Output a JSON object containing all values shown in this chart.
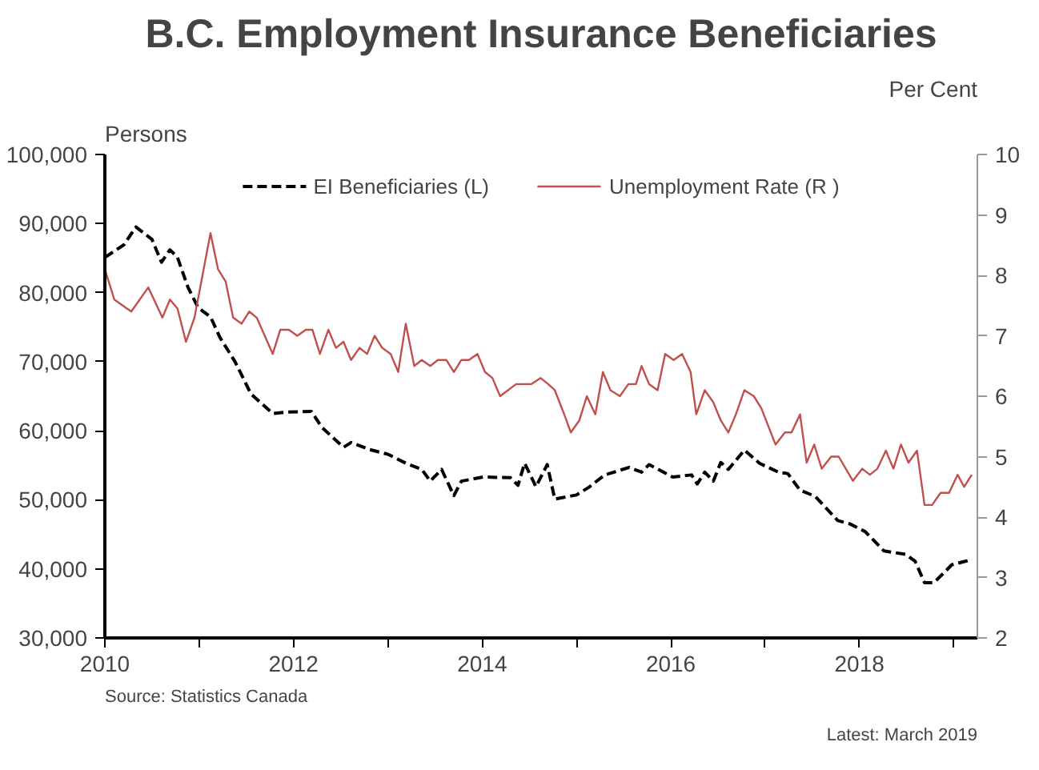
{
  "chart_data": {
    "type": "line",
    "title": "B.C. Employment Insurance Beneficiaries",
    "ylabel": "Persons",
    "y2label": "Per Cent",
    "legend": "top",
    "grid": false,
    "marker": "none",
    "xlim": [
      2010,
      2019.25
    ],
    "xticks": [
      2010,
      {
        "value": 2011,
        "label": null
      },
      2012,
      {
        "value": 2013,
        "label": null
      },
      2014,
      {
        "value": 2015,
        "label": null
      },
      2016,
      {
        "value": 2017,
        "label": null
      },
      2018,
      {
        "value": 2019,
        "label": null
      }
    ],
    "ylim": [
      30000,
      100000
    ],
    "yticks": [
      {
        "value": 30000,
        "label": "30,000"
      },
      {
        "value": 40000,
        "label": "40,000"
      },
      {
        "value": 50000,
        "label": "50,000"
      },
      {
        "value": 60000,
        "label": "60,000"
      },
      {
        "value": 70000,
        "label": "70,000"
      },
      {
        "value": 80000,
        "label": "80,000"
      },
      {
        "value": 90000,
        "label": "90,000"
      },
      {
        "value": 100000,
        "label": "100,000"
      }
    ],
    "y2lim": [
      2,
      10
    ],
    "y2ticks": [
      2,
      3,
      4,
      5,
      6,
      7,
      8,
      9,
      10
    ],
    "series": [
      {
        "name": "EI Beneficiaries (L)",
        "color": "#000000",
        "line_style": "dashed",
        "x": [
          2010.0,
          2010.2,
          2010.33,
          2010.5,
          2010.6,
          2010.69,
          2010.77,
          2010.88,
          2010.99,
          2011.12,
          2011.22,
          2011.38,
          2011.55,
          2011.78,
          2011.94,
          2012.19,
          2012.3,
          2012.53,
          2012.61,
          2012.8,
          2013.0,
          2013.19,
          2013.36,
          2013.45,
          2013.57,
          2013.7,
          2013.78,
          2014.01,
          2014.3,
          2014.38,
          2014.45,
          2014.57,
          2014.69,
          2014.77,
          2015.0,
          2015.13,
          2015.3,
          2015.56,
          2015.69,
          2015.77,
          2016.02,
          2016.22,
          2016.28,
          2016.36,
          2016.45,
          2016.53,
          2016.61,
          2016.78,
          2016.94,
          2017.14,
          2017.24,
          2017.37,
          2017.53,
          2017.77,
          2017.9,
          2018.06,
          2018.26,
          2018.49,
          2018.59,
          2018.69,
          2018.79,
          2018.98,
          2019.15
        ],
        "values": [
          85100,
          86900,
          89500,
          87700,
          84400,
          86200,
          85100,
          80800,
          77800,
          76500,
          73500,
          70000,
          65300,
          62500,
          62700,
          62800,
          60500,
          57600,
          58300,
          57300,
          56600,
          55300,
          54400,
          52700,
          54400,
          50600,
          52700,
          53300,
          53200,
          52100,
          55300,
          51900,
          55100,
          50100,
          50700,
          51800,
          53600,
          54700,
          54000,
          55100,
          53300,
          53600,
          52300,
          54000,
          52700,
          55400,
          54400,
          57200,
          55300,
          54000,
          53800,
          51400,
          50500,
          47000,
          46500,
          45400,
          42600,
          42100,
          41100,
          38000,
          38000,
          40600,
          41200
        ]
      },
      {
        "name": "Unemployment Rate (R )",
        "color": "#c0504d",
        "line_style": "solid",
        "axis": "y2",
        "x": [
          2010.0,
          2010.1,
          2010.28,
          2010.46,
          2010.61,
          2010.69,
          2010.77,
          2010.86,
          2010.95,
          2011.12,
          2011.2,
          2011.28,
          2011.36,
          2011.45,
          2011.53,
          2011.61,
          2011.78,
          2011.86,
          2011.95,
          2012.04,
          2012.13,
          2012.2,
          2012.28,
          2012.37,
          2012.45,
          2012.53,
          2012.61,
          2012.7,
          2012.78,
          2012.86,
          2012.94,
          2013.03,
          2013.11,
          2013.19,
          2013.28,
          2013.36,
          2013.45,
          2013.53,
          2013.62,
          2013.7,
          2013.78,
          2013.86,
          2013.95,
          2014.03,
          2014.11,
          2014.19,
          2014.36,
          2014.52,
          2014.62,
          2014.7,
          2014.77,
          2014.87,
          2014.94,
          2015.03,
          2015.11,
          2015.2,
          2015.28,
          2015.36,
          2015.46,
          2015.55,
          2015.63,
          2015.69,
          2015.77,
          2015.86,
          2015.94,
          2016.03,
          2016.12,
          2016.21,
          2016.27,
          2016.36,
          2016.45,
          2016.53,
          2016.61,
          2016.69,
          2016.78,
          2016.88,
          2016.96,
          2017.11,
          2017.21,
          2017.28,
          2017.37,
          2017.44,
          2017.52,
          2017.6,
          2017.7,
          2017.78,
          2017.93,
          2018.03,
          2018.11,
          2018.19,
          2018.28,
          2018.36,
          2018.44,
          2018.52,
          2018.61,
          2018.69,
          2018.77,
          2018.86,
          2018.95,
          2019.04,
          2019.11,
          2019.19
        ],
        "values": [
          8.1,
          7.6,
          7.4,
          7.8,
          7.3,
          7.6,
          7.45,
          6.9,
          7.3,
          8.7,
          8.1,
          7.9,
          7.3,
          7.2,
          7.4,
          7.3,
          6.7,
          7.1,
          7.1,
          7.0,
          7.1,
          7.1,
          6.7,
          7.1,
          6.8,
          6.9,
          6.6,
          6.8,
          6.7,
          7.0,
          6.8,
          6.7,
          6.4,
          7.2,
          6.5,
          6.6,
          6.5,
          6.6,
          6.6,
          6.4,
          6.6,
          6.6,
          6.7,
          6.4,
          6.3,
          6.0,
          6.2,
          6.2,
          6.3,
          6.2,
          6.1,
          5.7,
          5.4,
          5.6,
          6.0,
          5.7,
          6.4,
          6.1,
          6.0,
          6.2,
          6.2,
          6.5,
          6.2,
          6.1,
          6.7,
          6.6,
          6.7,
          6.4,
          5.7,
          6.1,
          5.9,
          5.6,
          5.4,
          5.7,
          6.1,
          6.0,
          5.8,
          5.2,
          5.4,
          5.4,
          5.7,
          4.9,
          5.2,
          4.8,
          5.0,
          5.0,
          4.6,
          4.8,
          4.7,
          4.8,
          5.1,
          4.8,
          5.2,
          4.9,
          5.1,
          4.2,
          4.2,
          4.4,
          4.4,
          4.7,
          4.5,
          4.7
        ]
      }
    ],
    "annotations": [
      "Source: Statistics Canada",
      "Latest: March 2019"
    ]
  }
}
